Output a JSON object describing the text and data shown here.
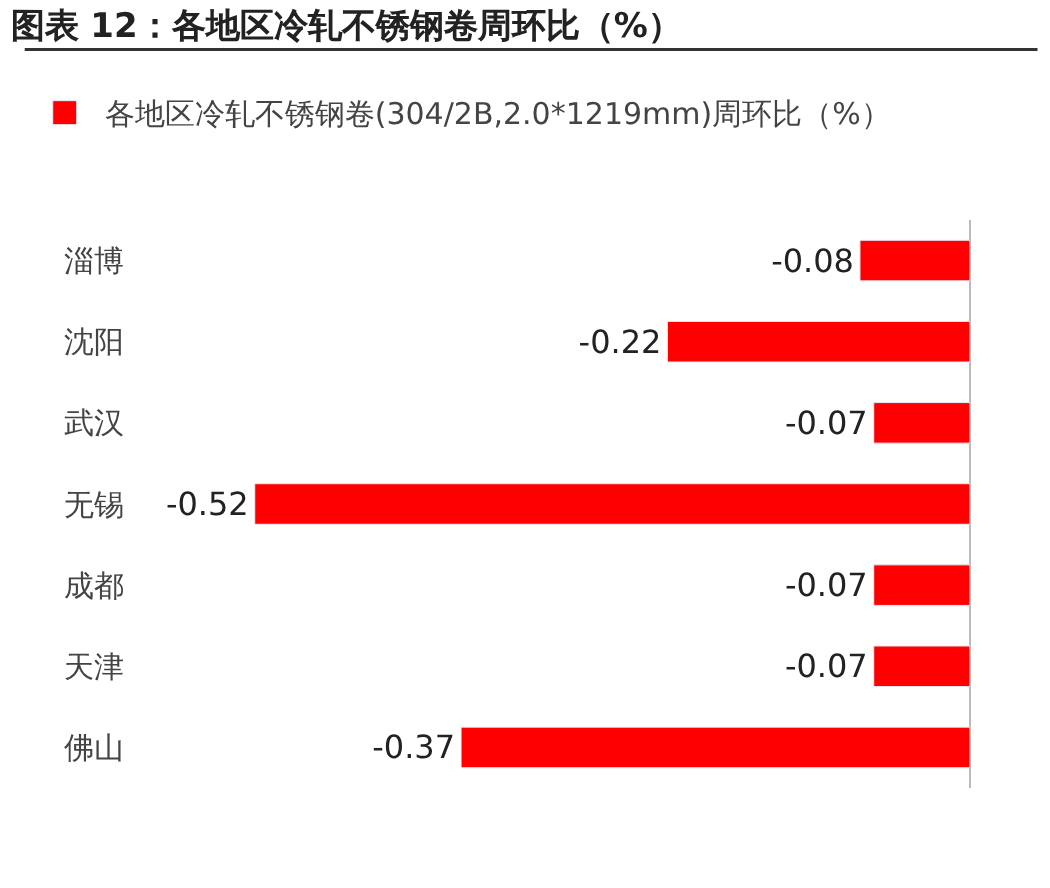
{
  "chart_data": {
    "type": "bar",
    "orientation": "horizontal",
    "title": "图表 12：各地区冷轧不锈钢卷周环比（%）",
    "categories": [
      "淄博",
      "沈阳",
      "武汉",
      "无锡",
      "成都",
      "天津",
      "佛山"
    ],
    "series": [
      {
        "name": "各地区冷轧不锈钢卷(304/2B,2.0*1219mm)周环比（%）",
        "color": "#ff0000",
        "values": [
          -0.08,
          -0.22,
          -0.07,
          -0.52,
          -0.07,
          -0.07,
          -0.37
        ]
      }
    ],
    "data_labels": true,
    "tick_labels": "y",
    "legend": "top left"
  }
}
